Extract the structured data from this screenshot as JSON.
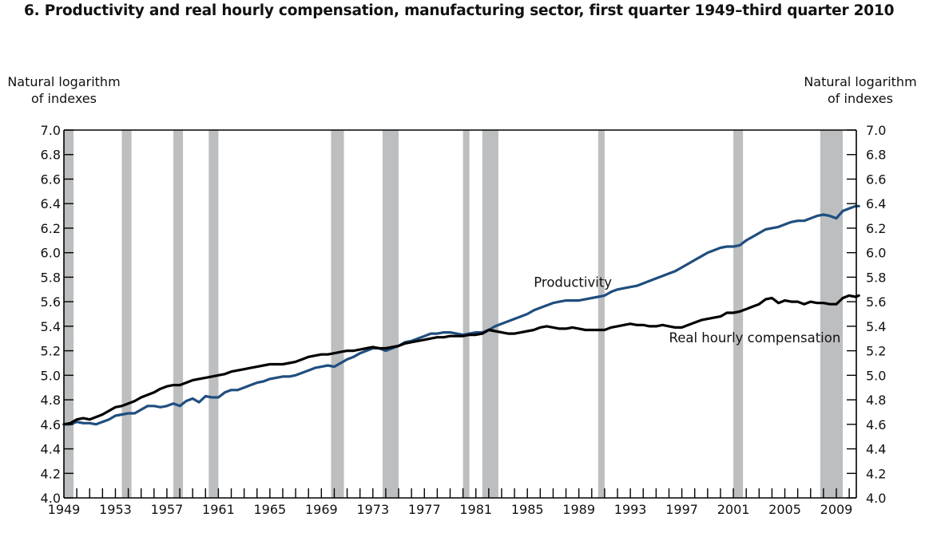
{
  "chart_data": {
    "type": "line",
    "title": "6. Productivity and real hourly compensation, manufacturing sector, first quarter 1949–third quarter 2010",
    "ylabel_left": [
      "Natural logarithm",
      "of indexes"
    ],
    "ylabel_right": [
      "Natural logarithm",
      "of indexes"
    ],
    "xlabel": "",
    "xlim": [
      1949,
      2010.75
    ],
    "ylim": [
      4.0,
      7.0
    ],
    "yticks": [
      "4.0",
      "4.2",
      "4.4",
      "4.6",
      "4.8",
      "5.0",
      "5.2",
      "5.4",
      "5.6",
      "5.8",
      "6.0",
      "6.2",
      "6.4",
      "6.6",
      "6.8",
      "7.0"
    ],
    "xtick_labels": [
      "1949",
      "1953",
      "1957",
      "1961",
      "1965",
      "1969",
      "1973",
      "1977",
      "1981",
      "1985",
      "1989",
      "1993",
      "1997",
      "2001",
      "2005",
      "2009"
    ],
    "grid": false,
    "recessions": [
      [
        1949.0,
        1949.75
      ],
      [
        1953.5,
        1954.25
      ],
      [
        1957.5,
        1958.25
      ],
      [
        1960.25,
        1961.0
      ],
      [
        1969.75,
        1970.75
      ],
      [
        1973.75,
        1975.0
      ],
      [
        1980.0,
        1980.5
      ],
      [
        1981.5,
        1982.75
      ],
      [
        1990.5,
        1991.0
      ],
      [
        2001.0,
        2001.75
      ],
      [
        2007.75,
        2009.5
      ]
    ],
    "recession_color": "#bcbec0",
    "series": [
      {
        "name": "Productivity",
        "color": "#1f4e7e",
        "label_at": [
          1985.5,
          5.72
        ],
        "points": [
          [
            1949.0,
            4.6
          ],
          [
            1949.5,
            4.6
          ],
          [
            1950.0,
            4.62
          ],
          [
            1950.5,
            4.61
          ],
          [
            1951.0,
            4.61
          ],
          [
            1951.5,
            4.6
          ],
          [
            1952.0,
            4.62
          ],
          [
            1952.5,
            4.64
          ],
          [
            1953.0,
            4.67
          ],
          [
            1953.5,
            4.68
          ],
          [
            1954.0,
            4.69
          ],
          [
            1954.5,
            4.69
          ],
          [
            1955.0,
            4.72
          ],
          [
            1955.5,
            4.75
          ],
          [
            1956.0,
            4.75
          ],
          [
            1956.5,
            4.74
          ],
          [
            1957.0,
            4.75
          ],
          [
            1957.5,
            4.77
          ],
          [
            1958.0,
            4.75
          ],
          [
            1958.5,
            4.79
          ],
          [
            1959.0,
            4.81
          ],
          [
            1959.5,
            4.78
          ],
          [
            1960.0,
            4.83
          ],
          [
            1960.5,
            4.82
          ],
          [
            1961.0,
            4.82
          ],
          [
            1961.5,
            4.86
          ],
          [
            1962.0,
            4.88
          ],
          [
            1962.5,
            4.88
          ],
          [
            1963.0,
            4.9
          ],
          [
            1963.5,
            4.92
          ],
          [
            1964.0,
            4.94
          ],
          [
            1964.5,
            4.95
          ],
          [
            1965.0,
            4.97
          ],
          [
            1965.5,
            4.98
          ],
          [
            1966.0,
            4.99
          ],
          [
            1966.5,
            4.99
          ],
          [
            1967.0,
            5.0
          ],
          [
            1967.5,
            5.02
          ],
          [
            1968.0,
            5.04
          ],
          [
            1968.5,
            5.06
          ],
          [
            1969.0,
            5.07
          ],
          [
            1969.5,
            5.08
          ],
          [
            1970.0,
            5.07
          ],
          [
            1970.5,
            5.1
          ],
          [
            1971.0,
            5.13
          ],
          [
            1971.5,
            5.15
          ],
          [
            1972.0,
            5.18
          ],
          [
            1972.5,
            5.2
          ],
          [
            1973.0,
            5.22
          ],
          [
            1973.5,
            5.22
          ],
          [
            1974.0,
            5.2
          ],
          [
            1974.5,
            5.22
          ],
          [
            1975.0,
            5.24
          ],
          [
            1975.5,
            5.27
          ],
          [
            1976.0,
            5.28
          ],
          [
            1976.5,
            5.3
          ],
          [
            1977.0,
            5.32
          ],
          [
            1977.5,
            5.34
          ],
          [
            1978.0,
            5.34
          ],
          [
            1978.5,
            5.35
          ],
          [
            1979.0,
            5.35
          ],
          [
            1979.5,
            5.34
          ],
          [
            1980.0,
            5.33
          ],
          [
            1980.5,
            5.34
          ],
          [
            1981.0,
            5.35
          ],
          [
            1981.5,
            5.35
          ],
          [
            1982.0,
            5.37
          ],
          [
            1982.5,
            5.4
          ],
          [
            1983.0,
            5.42
          ],
          [
            1983.5,
            5.44
          ],
          [
            1984.0,
            5.46
          ],
          [
            1984.5,
            5.48
          ],
          [
            1985.0,
            5.5
          ],
          [
            1985.5,
            5.53
          ],
          [
            1986.0,
            5.55
          ],
          [
            1986.5,
            5.57
          ],
          [
            1987.0,
            5.59
          ],
          [
            1987.5,
            5.6
          ],
          [
            1988.0,
            5.61
          ],
          [
            1988.5,
            5.61
          ],
          [
            1989.0,
            5.61
          ],
          [
            1989.5,
            5.62
          ],
          [
            1990.0,
            5.63
          ],
          [
            1990.5,
            5.64
          ],
          [
            1991.0,
            5.65
          ],
          [
            1991.5,
            5.68
          ],
          [
            1992.0,
            5.7
          ],
          [
            1992.5,
            5.71
          ],
          [
            1993.0,
            5.72
          ],
          [
            1993.5,
            5.73
          ],
          [
            1994.0,
            5.75
          ],
          [
            1994.5,
            5.77
          ],
          [
            1995.0,
            5.79
          ],
          [
            1995.5,
            5.81
          ],
          [
            1996.0,
            5.83
          ],
          [
            1996.5,
            5.85
          ],
          [
            1997.0,
            5.88
          ],
          [
            1997.5,
            5.91
          ],
          [
            1998.0,
            5.94
          ],
          [
            1998.5,
            5.97
          ],
          [
            1999.0,
            6.0
          ],
          [
            1999.5,
            6.02
          ],
          [
            2000.0,
            6.04
          ],
          [
            2000.5,
            6.05
          ],
          [
            2001.0,
            6.05
          ],
          [
            2001.5,
            6.06
          ],
          [
            2002.0,
            6.1
          ],
          [
            2002.5,
            6.13
          ],
          [
            2003.0,
            6.16
          ],
          [
            2003.5,
            6.19
          ],
          [
            2004.0,
            6.2
          ],
          [
            2004.5,
            6.21
          ],
          [
            2005.0,
            6.23
          ],
          [
            2005.5,
            6.25
          ],
          [
            2006.0,
            6.26
          ],
          [
            2006.5,
            6.26
          ],
          [
            2007.0,
            6.28
          ],
          [
            2007.5,
            6.3
          ],
          [
            2008.0,
            6.31
          ],
          [
            2008.5,
            6.3
          ],
          [
            2009.0,
            6.28
          ],
          [
            2009.5,
            6.34
          ],
          [
            2010.0,
            6.36
          ],
          [
            2010.5,
            6.38
          ],
          [
            2010.75,
            6.38
          ]
        ]
      },
      {
        "name": "Real hourly compensation",
        "color": "#000000",
        "label_at": [
          1996.0,
          5.27
        ],
        "points": [
          [
            1949.0,
            4.6
          ],
          [
            1949.5,
            4.61
          ],
          [
            1950.0,
            4.64
          ],
          [
            1950.5,
            4.65
          ],
          [
            1951.0,
            4.64
          ],
          [
            1951.5,
            4.66
          ],
          [
            1952.0,
            4.68
          ],
          [
            1952.5,
            4.71
          ],
          [
            1953.0,
            4.74
          ],
          [
            1953.5,
            4.75
          ],
          [
            1954.0,
            4.77
          ],
          [
            1954.5,
            4.79
          ],
          [
            1955.0,
            4.82
          ],
          [
            1955.5,
            4.84
          ],
          [
            1956.0,
            4.86
          ],
          [
            1956.5,
            4.89
          ],
          [
            1957.0,
            4.91
          ],
          [
            1957.5,
            4.92
          ],
          [
            1958.0,
            4.92
          ],
          [
            1958.5,
            4.94
          ],
          [
            1959.0,
            4.96
          ],
          [
            1959.5,
            4.97
          ],
          [
            1960.0,
            4.98
          ],
          [
            1960.5,
            4.99
          ],
          [
            1961.0,
            5.0
          ],
          [
            1961.5,
            5.01
          ],
          [
            1962.0,
            5.03
          ],
          [
            1962.5,
            5.04
          ],
          [
            1963.0,
            5.05
          ],
          [
            1963.5,
            5.06
          ],
          [
            1964.0,
            5.07
          ],
          [
            1964.5,
            5.08
          ],
          [
            1965.0,
            5.09
          ],
          [
            1965.5,
            5.09
          ],
          [
            1966.0,
            5.09
          ],
          [
            1966.5,
            5.1
          ],
          [
            1967.0,
            5.11
          ],
          [
            1967.5,
            5.13
          ],
          [
            1968.0,
            5.15
          ],
          [
            1968.5,
            5.16
          ],
          [
            1969.0,
            5.17
          ],
          [
            1969.5,
            5.17
          ],
          [
            1970.0,
            5.18
          ],
          [
            1970.5,
            5.19
          ],
          [
            1971.0,
            5.2
          ],
          [
            1971.5,
            5.2
          ],
          [
            1972.0,
            5.21
          ],
          [
            1972.5,
            5.22
          ],
          [
            1973.0,
            5.23
          ],
          [
            1973.5,
            5.22
          ],
          [
            1974.0,
            5.22
          ],
          [
            1974.5,
            5.23
          ],
          [
            1975.0,
            5.24
          ],
          [
            1975.5,
            5.26
          ],
          [
            1976.0,
            5.27
          ],
          [
            1976.5,
            5.28
          ],
          [
            1977.0,
            5.29
          ],
          [
            1977.5,
            5.3
          ],
          [
            1978.0,
            5.31
          ],
          [
            1978.5,
            5.31
          ],
          [
            1979.0,
            5.32
          ],
          [
            1979.5,
            5.32
          ],
          [
            1980.0,
            5.32
          ],
          [
            1980.5,
            5.33
          ],
          [
            1981.0,
            5.33
          ],
          [
            1981.5,
            5.34
          ],
          [
            1982.0,
            5.37
          ],
          [
            1982.5,
            5.36
          ],
          [
            1983.0,
            5.35
          ],
          [
            1983.5,
            5.34
          ],
          [
            1984.0,
            5.34
          ],
          [
            1984.5,
            5.35
          ],
          [
            1985.0,
            5.36
          ],
          [
            1985.5,
            5.37
          ],
          [
            1986.0,
            5.39
          ],
          [
            1986.5,
            5.4
          ],
          [
            1987.0,
            5.39
          ],
          [
            1987.5,
            5.38
          ],
          [
            1988.0,
            5.38
          ],
          [
            1988.5,
            5.39
          ],
          [
            1989.0,
            5.38
          ],
          [
            1989.5,
            5.37
          ],
          [
            1990.0,
            5.37
          ],
          [
            1990.5,
            5.37
          ],
          [
            1991.0,
            5.37
          ],
          [
            1991.5,
            5.39
          ],
          [
            1992.0,
            5.4
          ],
          [
            1992.5,
            5.41
          ],
          [
            1993.0,
            5.42
          ],
          [
            1993.5,
            5.41
          ],
          [
            1994.0,
            5.41
          ],
          [
            1994.5,
            5.4
          ],
          [
            1995.0,
            5.4
          ],
          [
            1995.5,
            5.41
          ],
          [
            1996.0,
            5.4
          ],
          [
            1996.5,
            5.39
          ],
          [
            1997.0,
            5.39
          ],
          [
            1997.5,
            5.41
          ],
          [
            1998.0,
            5.43
          ],
          [
            1998.5,
            5.45
          ],
          [
            1999.0,
            5.46
          ],
          [
            1999.5,
            5.47
          ],
          [
            2000.0,
            5.48
          ],
          [
            2000.5,
            5.51
          ],
          [
            2001.0,
            5.51
          ],
          [
            2001.5,
            5.52
          ],
          [
            2002.0,
            5.54
          ],
          [
            2002.5,
            5.56
          ],
          [
            2003.0,
            5.58
          ],
          [
            2003.5,
            5.62
          ],
          [
            2004.0,
            5.63
          ],
          [
            2004.5,
            5.59
          ],
          [
            2005.0,
            5.61
          ],
          [
            2005.5,
            5.6
          ],
          [
            2006.0,
            5.6
          ],
          [
            2006.5,
            5.58
          ],
          [
            2007.0,
            5.6
          ],
          [
            2007.5,
            5.59
          ],
          [
            2008.0,
            5.59
          ],
          [
            2008.5,
            5.58
          ],
          [
            2009.0,
            5.58
          ],
          [
            2009.5,
            5.63
          ],
          [
            2010.0,
            5.65
          ],
          [
            2010.5,
            5.64
          ],
          [
            2010.75,
            5.65
          ]
        ]
      }
    ]
  }
}
